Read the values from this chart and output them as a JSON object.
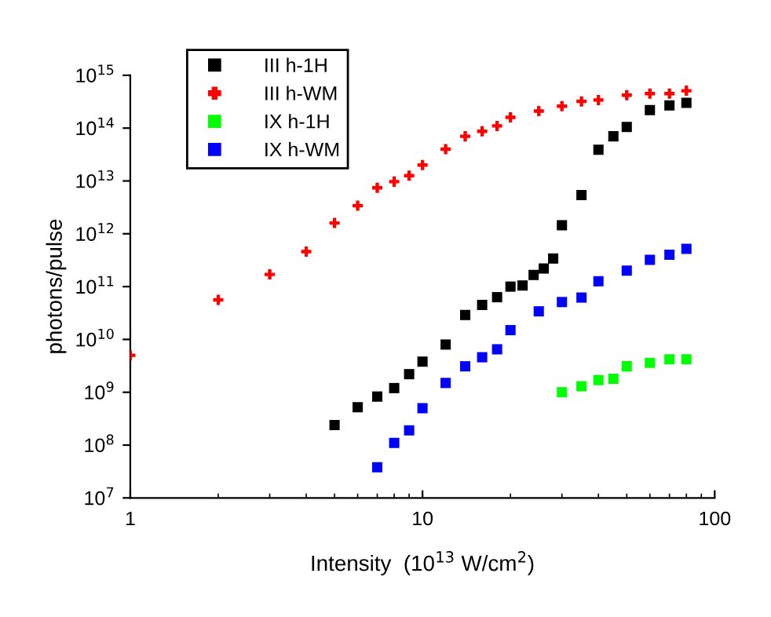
{
  "chart_data": {
    "type": "scatter",
    "xlabel": "Intensity  (10$^{13}$ W/cm$^{2}$)",
    "ylabel": "photons/pulse",
    "log": "xy",
    "legend": "top left",
    "grid": false,
    "xlim": [
      1,
      100
    ],
    "xticks": [
      1,
      10,
      100
    ],
    "ylim": [
      10000000.0,
      1000000000000000.0
    ],
    "yticks": [
      {
        "value": 10000000.0,
        "label": "10$^{7}$"
      },
      {
        "value": 100000000.0,
        "label": "10$^{8}$"
      },
      {
        "value": 1000000000.0,
        "label": "10$^{9}$"
      },
      {
        "value": 10000000000.0,
        "label": "10$^{10}$"
      },
      {
        "value": 100000000000.0,
        "label": "10$^{11}$"
      },
      {
        "value": 1000000000000.0,
        "label": "10$^{12}$"
      },
      {
        "value": 10000000000000.0,
        "label": "10$^{13}$"
      },
      {
        "value": 100000000000000.0,
        "label": "10$^{14}$"
      },
      {
        "value": 1000000000000000.0,
        "label": "10$^{15}$"
      }
    ],
    "series": [
      {
        "name": "III h-1H",
        "color": "#000000",
        "marker": "square",
        "x": [
          5,
          6,
          7,
          8,
          9,
          10,
          12,
          14,
          16,
          18,
          20,
          22,
          24,
          26,
          28,
          30,
          35,
          40,
          45,
          50,
          60,
          70,
          80
        ],
        "values": [
          240000000.0,
          520000000.0,
          830000000.0,
          1200000000.0,
          2200000000.0,
          3800000000.0,
          8000000000.0,
          29000000000.0,
          45000000000.0,
          63000000000.0,
          100000000000.0,
          105000000000.0,
          166000000000.0,
          220000000000.0,
          340000000000.0,
          1450000000000.0,
          5400000000000.0,
          39000000000000.0,
          70000000000000.0,
          105000000000000.0,
          220000000000000.0,
          270000000000000.0,
          300000000000000.0
        ]
      },
      {
        "name": "III h-WM",
        "color": "#ff0000",
        "marker": "cross",
        "x": [
          1,
          2,
          3,
          4,
          5,
          6,
          7,
          8,
          9,
          10,
          12,
          14,
          16,
          18,
          20,
          25,
          30,
          35,
          40,
          50,
          60,
          70,
          80
        ],
        "values": [
          5000000000.0,
          56000000000.0,
          170000000000.0,
          460000000000.0,
          1600000000000.0,
          3400000000000.0,
          7400000000000.0,
          9700000000000.0,
          12600000000000.0,
          20000000000000.0,
          40000000000000.0,
          70000000000000.0,
          87000000000000.0,
          110000000000000.0,
          160000000000000.0,
          210000000000000.0,
          260000000000000.0,
          320000000000000.0,
          340000000000000.0,
          420000000000000.0,
          450000000000000.0,
          450000000000000.0,
          510000000000000.0
        ]
      },
      {
        "name": "IX h-1H",
        "color": "#00ff00",
        "marker": "square",
        "x": [
          30,
          35,
          40,
          45,
          50,
          60,
          70,
          80
        ],
        "values": [
          1000000000.0,
          1300000000.0,
          1700000000.0,
          1800000000.0,
          3100000000.0,
          3600000000.0,
          4200000000.0,
          4200000000.0
        ]
      },
      {
        "name": "IX h-WM",
        "color": "#0000ff",
        "marker": "square",
        "x": [
          7,
          8,
          9,
          10,
          12,
          14,
          16,
          18,
          20,
          25,
          30,
          35,
          40,
          50,
          60,
          70,
          80
        ],
        "values": [
          38000000.0,
          110000000.0,
          190000000.0,
          500000000.0,
          1500000000.0,
          3100000000.0,
          4600000000.0,
          6500000000.0,
          15000000000.0,
          34000000000.0,
          51000000000.0,
          62000000000.0,
          126000000000.0,
          200000000000.0,
          320000000000.0,
          400000000000.0,
          520000000000.0
        ]
      }
    ]
  }
}
